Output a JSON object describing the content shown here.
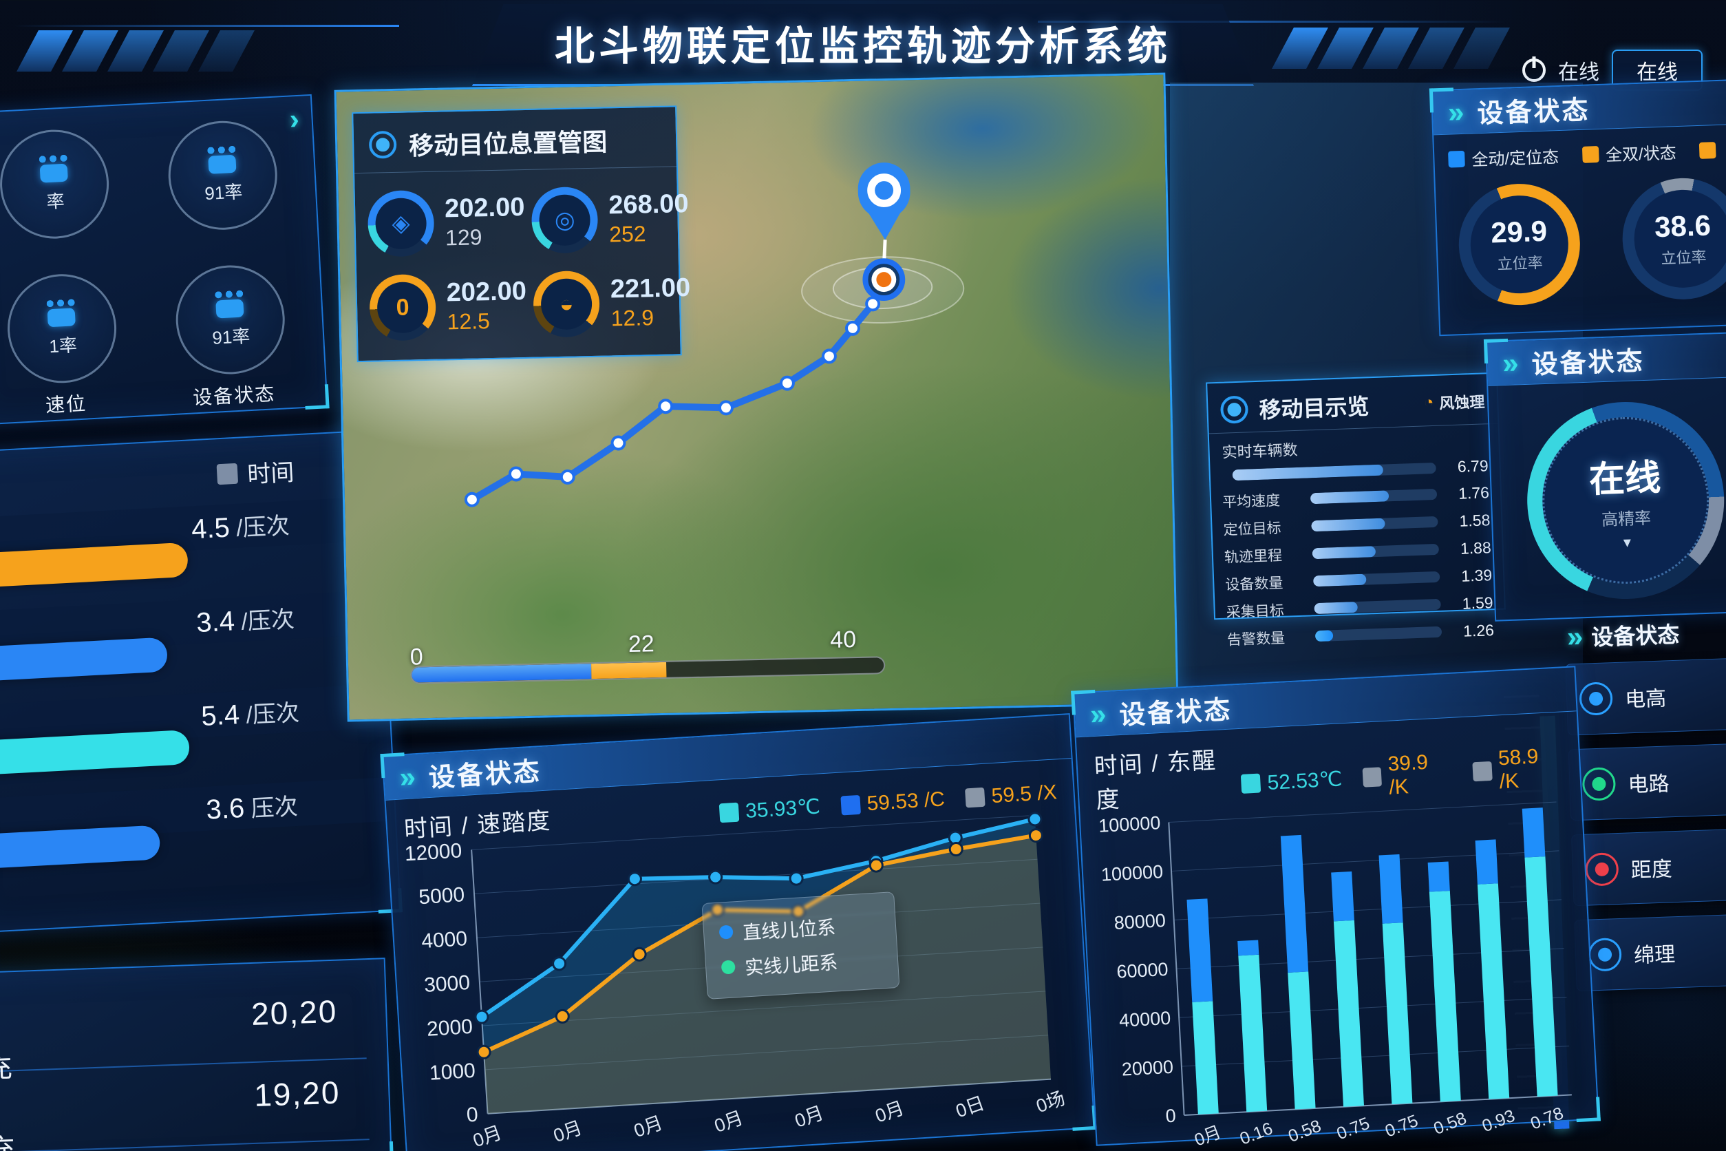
{
  "app": {
    "title": "北斗物联定位监控轨迹分析系统",
    "status_label": "在线",
    "status_button": "在线"
  },
  "glyphs": {
    "chevrons": "»",
    "chevron": "›",
    "triangle": "▾",
    "corner_icon": "◔"
  },
  "sidebar": {
    "items": [
      {
        "icon": "paw-icon",
        "value": "率",
        "caption": ""
      },
      {
        "icon": "paw-icon",
        "value": "91率",
        "caption": ""
      },
      {
        "icon": "paw-icon",
        "value": "1率",
        "caption": "速位"
      },
      {
        "icon": "camera-paw-icon",
        "value": "91率",
        "caption": "设备状态"
      }
    ]
  },
  "time_panel": {
    "legend_label": "时间",
    "legend_swatch_color": "#7e8ea6",
    "rows": [
      {
        "value": "4.5",
        "unit": "/压次",
        "color": "#f6a21c",
        "width_pct": 58
      },
      {
        "value": "3.4",
        "unit": "/压次",
        "color": "#2a86f5",
        "width_pct": 52
      },
      {
        "value": "5.4",
        "unit": "/压次",
        "color": "#35e0e8",
        "width_pct": 56
      },
      {
        "value": "3.6",
        "unit": "压次",
        "color": "#2a86f5",
        "width_pct": 48
      }
    ]
  },
  "charge_panel": {
    "rows": [
      {
        "label": "充",
        "value": "20,20"
      },
      {
        "label": "充",
        "value": "19,20"
      }
    ]
  },
  "map_overlay_stats": {
    "title": "移动目位息置管图",
    "gauges": [
      {
        "icon": "compass-icon",
        "glyph": "◈",
        "value": "202.00",
        "sub": "129",
        "ring_color": "#2a86f5",
        "accent": "#39d6e0",
        "sub_color": "#cdd6e4"
      },
      {
        "icon": "target-icon",
        "glyph": "◎",
        "value": "268.00",
        "sub": "252",
        "ring_color": "#2a86f5",
        "accent": "#39d6e0",
        "sub_color": "#f6a21c"
      },
      {
        "icon": "lock-icon",
        "glyph": "0",
        "value": "202.00",
        "sub": "12.5",
        "ring_color": "#f6a21c",
        "accent": "#5d4410",
        "sub_color": "#f6a21c"
      },
      {
        "icon": "operator-icon",
        "glyph": "◒",
        "value": "221.00",
        "sub": "12.9",
        "ring_color": "#f6a21c",
        "accent": "#5d4410",
        "sub_color": "#f6a21c"
      }
    ]
  },
  "map_overlay_list": {
    "title": "移动目示览",
    "corner_label": "风蚀理",
    "header_label": "实时车辆数",
    "rows": [
      {
        "label": "",
        "value": "6.79",
        "pct": 74,
        "fill": "linear-gradient(90deg,#a9cdf5,#3f8de0)"
      },
      {
        "label": "平均速度",
        "value": "1.76",
        "pct": 62,
        "fill": "linear-gradient(90deg,#a9cdf5,#3f8de0)"
      },
      {
        "label": "定位目标",
        "value": "1.58",
        "pct": 58,
        "fill": "linear-gradient(90deg,#a9cdf5,#3f8de0)"
      },
      {
        "label": "轨迹里程",
        "value": "1.88",
        "pct": 50,
        "fill": "linear-gradient(90deg,#a9cdf5,#3f8de0)"
      },
      {
        "label": "设备数量",
        "value": "1.39",
        "pct": 42,
        "fill": "linear-gradient(90deg,#a9cdf5,#3f8de0)"
      },
      {
        "label": "采集目标",
        "value": "1.59",
        "pct": 34,
        "fill": "linear-gradient(90deg,#a9cdf5,#3f8de0)"
      },
      {
        "label": "告警数量",
        "value": "1.26",
        "pct": 14,
        "fill": "linear-gradient(90deg,#4db4f8,#1f8ffb)"
      }
    ]
  },
  "map_slider": {
    "min": "0",
    "mid": "22",
    "max": "40",
    "blue_pct": 38,
    "orange_pct": 16
  },
  "right_top": {
    "title": "设备状态",
    "legend": [
      {
        "label": "全动/定位态",
        "color": "#1f8ffb"
      },
      {
        "label": "全双/状态",
        "color": "#f6a21c"
      },
      {
        "label": "",
        "color": "#f6a21c"
      }
    ],
    "gauges": [
      {
        "value": "29.9",
        "label": "立位率",
        "arc_color": "#f6a21c",
        "arc_pct": 62,
        "rest_color": "#14386b"
      },
      {
        "value": "38.6",
        "label": "立位率",
        "arc_color": "#8a97a8",
        "arc_pct": 9,
        "rest_color": "#14386b"
      }
    ]
  },
  "right_mid": {
    "title": "设备状态",
    "center": "在线",
    "sub": "高精率"
  },
  "right_list": {
    "title": "设备状态",
    "items": [
      {
        "icon": "battery-icon",
        "label": "电高",
        "color": "#2aa0ff"
      },
      {
        "icon": "power-icon",
        "label": "电路",
        "color": "#21d98b"
      },
      {
        "icon": "distance-icon",
        "label": "距度",
        "color": "#f0404a"
      },
      {
        "icon": "signal-icon",
        "label": "绵理",
        "color": "#2aa0ff"
      }
    ]
  },
  "chart_data": [
    {
      "id": "line_chart",
      "type": "line",
      "panel_title": "设备状态",
      "subtitle": "时间 / 速踏度",
      "legend": [
        {
          "label": "35.93℃",
          "swatch": "#39d6e0",
          "text_color": "#39d6e0"
        },
        {
          "label": "59.53 /C",
          "swatch": "#1f6ff0",
          "text_color": "#f6a21c"
        },
        {
          "label": "59.5 /X",
          "swatch": "#8a97a8",
          "text_color": "#f6a21c"
        }
      ],
      "y_ticks": [
        0,
        1000,
        2000,
        3000,
        4000,
        5000,
        12000
      ],
      "x_labels": [
        "0月",
        "0月",
        "0月",
        "0月",
        "0月",
        "0月",
        "0日",
        "0场"
      ],
      "series": [
        {
          "name": "line-blue",
          "color": "#2ab1f5",
          "values": [
            2200,
            3300,
            5800,
            5300,
            4900,
            6300,
            9200,
            11400
          ]
        },
        {
          "name": "line-orange",
          "color": "#f6a21c",
          "values": [
            1400,
            2100,
            3400,
            4300,
            4150,
            5600,
            7400,
            8800
          ]
        }
      ],
      "tooltip": [
        {
          "label": "直线儿位系",
          "color": "#1f8ffb"
        },
        {
          "label": "实线儿距系",
          "color": "#2de0a0"
        }
      ],
      "grid": true,
      "legend_position": "top-right"
    },
    {
      "id": "bar_chart",
      "type": "stacked-bar",
      "panel_title": "设备状态",
      "subtitle": "时间 / 东醒度",
      "legend": [
        {
          "label": "52.53℃",
          "swatch": "#39d6e0",
          "text_color": "#39d6e0"
        },
        {
          "label": "39.9 /K",
          "swatch": "#8a97a8",
          "text_color": "#f6a21c"
        },
        {
          "label": "58.9 /K",
          "swatch": "#8a97a8",
          "text_color": "#f6a21c"
        }
      ],
      "y_tick_labels": [
        "0",
        "20000",
        "40000",
        "60000",
        "80000",
        "100000",
        "100000"
      ],
      "ymax": 120000,
      "categories": [
        "0月",
        "0.16",
        "0.58",
        "0.75",
        "0.75",
        "0.58",
        "0.93",
        "0.78"
      ],
      "series": [
        {
          "name": "bar-cyan",
          "color": "#49e6f2",
          "values": [
            46000,
            64000,
            56000,
            76000,
            74000,
            86000,
            88000,
            98000
          ]
        },
        {
          "name": "bar-blue",
          "color": "#1f8ffb",
          "values": [
            42000,
            6000,
            56000,
            20000,
            28000,
            12000,
            18000,
            20000
          ]
        }
      ],
      "grid": true,
      "legend_position": "top-right"
    }
  ]
}
